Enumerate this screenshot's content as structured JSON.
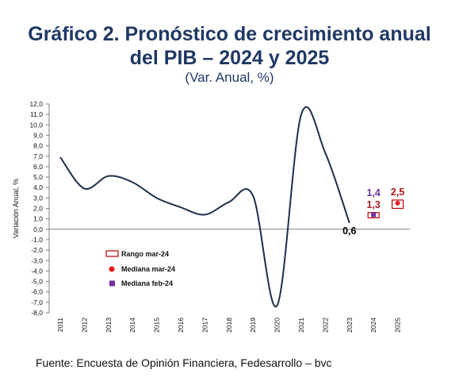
{
  "title_line1": "Gráfico 2. Pronóstico de crecimiento anual",
  "title_line2": "del PIB – 2024 y 2025",
  "subtitle": "(Var. Anual, %)",
  "source": "Fuente: Encuesta de Opinión Financiera, Fedesarrollo – bvc",
  "colors": {
    "line": "#1c2f4a",
    "range": "#c00000",
    "median_mar": "#e31a1c",
    "median_feb": "#7030a0",
    "title": "#1f3864"
  },
  "chart_data": {
    "type": "line",
    "ylabel": "Variación Anual, %",
    "ylim": [
      -8.0,
      12.0
    ],
    "y_ticks": [
      "12,0",
      "11,0",
      "10,0",
      "9,0",
      "8,0",
      "7,0",
      "6,0",
      "5,0",
      "4,0",
      "3,0",
      "2,0",
      "1,0",
      "0,0",
      "-1,0",
      "-2,0",
      "-3,0",
      "-4,0",
      "-5,0",
      "-6,0",
      "-7,0",
      "-8,0"
    ],
    "categories": [
      "2011",
      "2012",
      "2013",
      "2014",
      "2015",
      "2016",
      "2017",
      "2018",
      "2019",
      "2020",
      "2021",
      "2022",
      "2023",
      "2024",
      "2025"
    ],
    "series": [
      {
        "values": [
          6.9,
          3.9,
          5.1,
          4.5,
          3.0,
          2.1,
          1.4,
          2.6,
          3.2,
          -7.3,
          11.0,
          7.3,
          0.6,
          null,
          null
        ]
      }
    ],
    "forecasts": [
      {
        "year": "2024",
        "range_low": 1.1,
        "range_high": 1.6,
        "median_mar": 1.3,
        "median_feb": 1.4,
        "label_mar": "1,3",
        "label_feb": "1,4"
      },
      {
        "year": "2025",
        "range_low": 2.0,
        "range_high": 2.8,
        "median_mar": 2.5,
        "label_mar": "2,5"
      }
    ],
    "point_labels": [
      {
        "year": "2023",
        "text": "0,6"
      }
    ],
    "legend": {
      "position": "left",
      "items": [
        "Rango mar-24",
        "Mediana mar-24",
        "Mediana feb-24"
      ]
    }
  }
}
